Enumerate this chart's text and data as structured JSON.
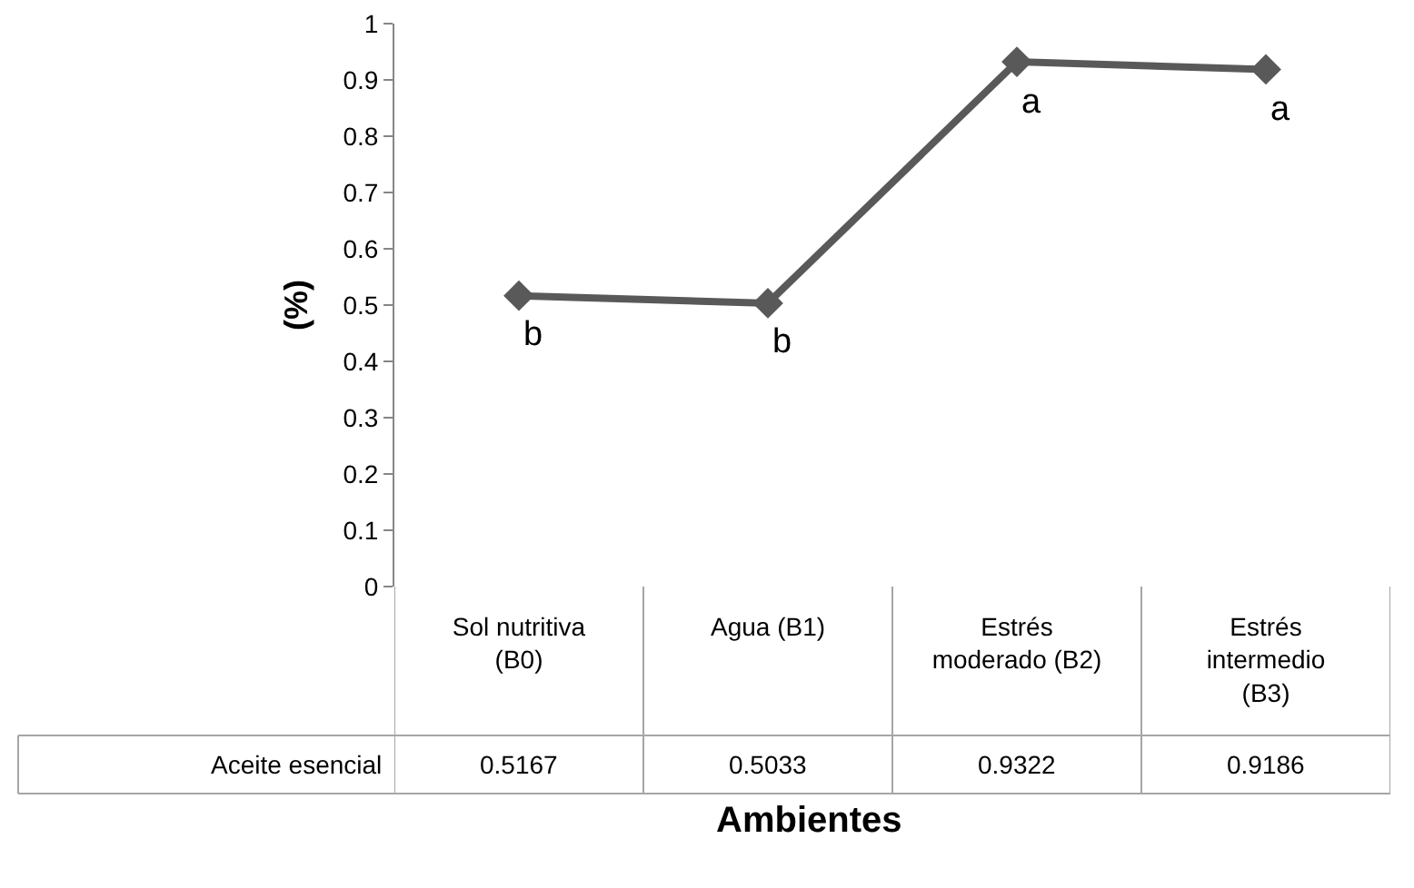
{
  "chart_data": {
    "type": "line",
    "xlabel": "Ambientes",
    "ylabel": "(%)",
    "categories": [
      "Sol nutritiva (B0)",
      "Agua (B1)",
      "Estrés moderado (B2)",
      "Estrés intermedio (B3)"
    ],
    "series": [
      {
        "name": "Aceite esencial",
        "color": "#595959",
        "values": [
          0.5167,
          0.5033,
          0.9322,
          0.9186
        ]
      }
    ],
    "ylim": [
      0,
      1
    ],
    "yticks": [
      0,
      0.1,
      0.2,
      0.3,
      0.4,
      0.5,
      0.6,
      0.7,
      0.8,
      0.9,
      1
    ],
    "annotations": [
      {
        "text": "b",
        "x": "Sol nutritiva (B0)",
        "y": 0.5167
      },
      {
        "text": "b",
        "x": "Agua (B1)",
        "y": 0.5033
      },
      {
        "text": "a",
        "x": "Estrés moderado (B2)",
        "y": 0.9322
      },
      {
        "text": "a",
        "x": "Estrés intermedio (B3)",
        "y": 0.9186
      }
    ],
    "data_labels": true,
    "grid": false,
    "legend": false,
    "marker": "diamond",
    "line_style": "solid"
  }
}
